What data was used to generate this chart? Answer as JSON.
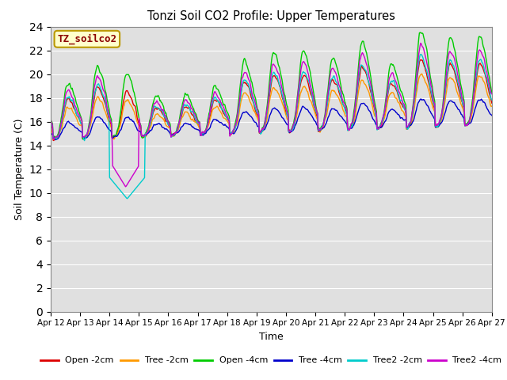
{
  "title": "Tonzi Soil CO2 Profile: Upper Temperatures",
  "xlabel": "Time",
  "ylabel": "Soil Temperature (C)",
  "ylim": [
    0,
    24
  ],
  "yticks": [
    0,
    2,
    4,
    6,
    8,
    10,
    12,
    14,
    16,
    18,
    20,
    22,
    24
  ],
  "xtick_labels": [
    "Apr 12",
    "Apr 13",
    "Apr 14",
    "Apr 15",
    "Apr 16",
    "Apr 17",
    "Apr 18",
    "Apr 19",
    "Apr 20",
    "Apr 21",
    "Apr 22",
    "Apr 23",
    "Apr 24",
    "Apr 25",
    "Apr 26",
    "Apr 27"
  ],
  "watermark": "TZ_soilco2",
  "watermark_color": "#8b0000",
  "watermark_bg": "#ffffcc",
  "watermark_border": "#bb9900",
  "plot_bg": "#e0e0e0",
  "grid_color": "#ffffff",
  "series": [
    {
      "label": "Open -2cm",
      "color": "#dd0000",
      "lw": 1.0
    },
    {
      "label": "Tree -2cm",
      "color": "#ff9900",
      "lw": 1.0
    },
    {
      "label": "Open -4cm",
      "color": "#00cc00",
      "lw": 1.0
    },
    {
      "label": "Tree -4cm",
      "color": "#0000cc",
      "lw": 1.0
    },
    {
      "label": "Tree2 -2cm",
      "color": "#00cccc",
      "lw": 1.0
    },
    {
      "label": "Tree2 -4cm",
      "color": "#cc00cc",
      "lw": 1.0
    }
  ],
  "figsize": [
    6.4,
    4.8
  ],
  "dpi": 100
}
